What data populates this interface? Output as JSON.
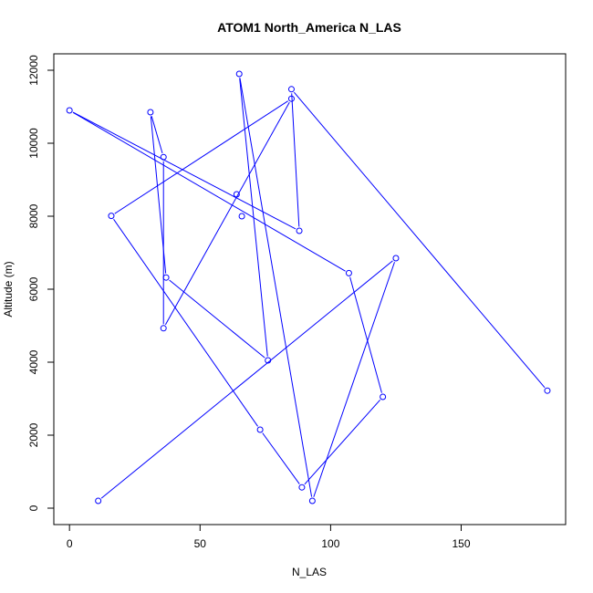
{
  "chart_data": {
    "type": "line",
    "title": "ATOM1 North_America N_LAS",
    "xlabel": "N_LAS",
    "ylabel": "Altitude (m)",
    "xlim": [
      -6,
      190
    ],
    "ylim": [
      -450,
      12450
    ],
    "xticks": [
      0,
      50,
      100,
      150
    ],
    "yticks": [
      0,
      2000,
      4000,
      6000,
      8000,
      10000,
      12000
    ],
    "grid": false,
    "legend": "none",
    "series": [
      {
        "color": "#0000ff",
        "marker": "open-circle",
        "x": [
          11,
          125,
          93,
          65,
          76,
          37,
          31,
          36,
          36,
          85,
          16,
          73,
          89,
          120,
          107,
          0,
          88,
          85,
          183
        ],
        "y": [
          200,
          6850,
          200,
          11900,
          4050,
          6320,
          10850,
          9620,
          4930,
          11220,
          8010,
          2150,
          570,
          3050,
          6440,
          10900,
          7600,
          11480,
          3220
        ],
        "extra_points": [
          {
            "x": 64,
            "y": 8600
          },
          {
            "x": 66,
            "y": 8000
          }
        ]
      }
    ]
  }
}
